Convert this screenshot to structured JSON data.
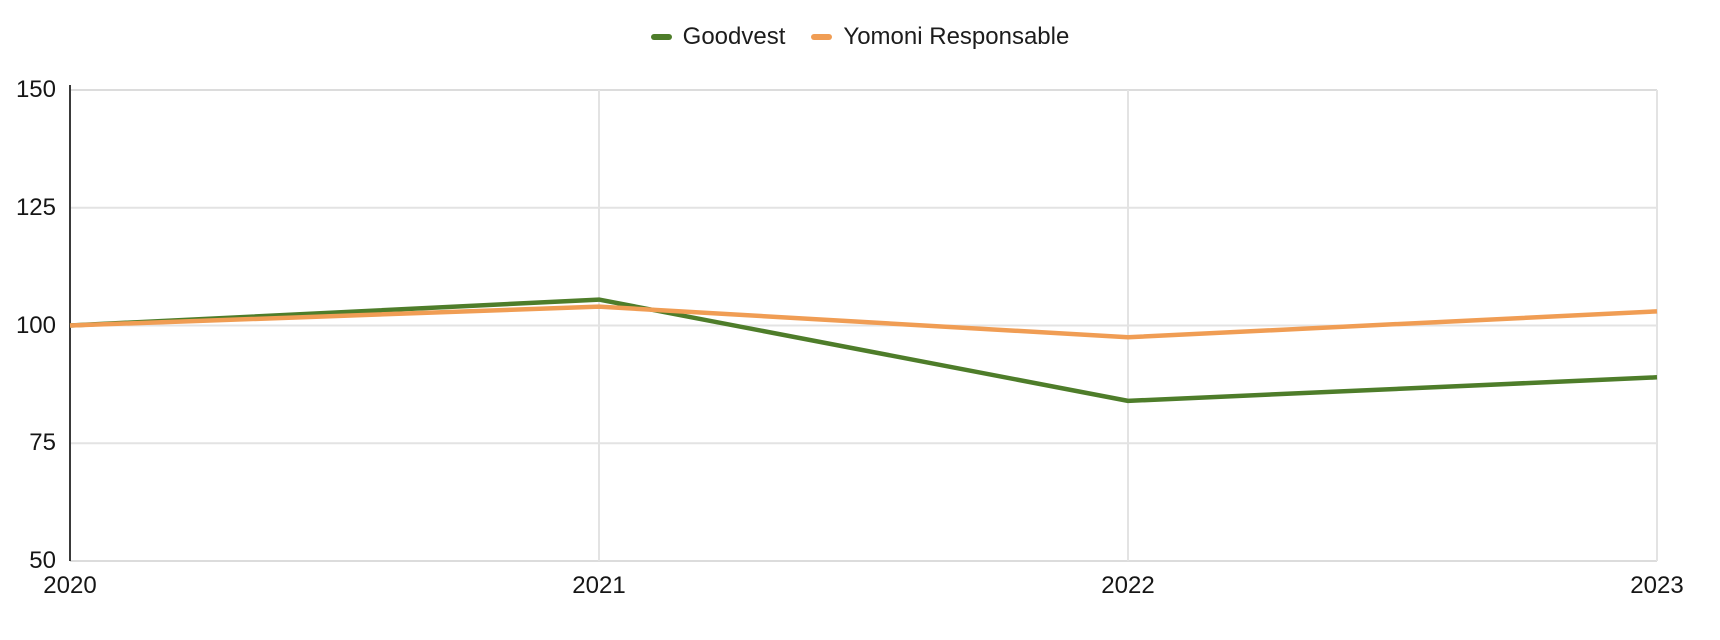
{
  "chart_data": {
    "type": "line",
    "title": "",
    "xlabel": "",
    "ylabel": "",
    "categories": [
      "2020",
      "2021",
      "2022",
      "2023"
    ],
    "series": [
      {
        "name": "Goodvest",
        "color": "#4e7d2a",
        "values": [
          100,
          105.5,
          84,
          89
        ]
      },
      {
        "name": "Yomoni Responsable",
        "color": "#f09d54",
        "values": [
          100,
          104,
          97.5,
          103
        ]
      }
    ],
    "ylim": [
      50,
      150
    ],
    "yticks": [
      150,
      125,
      100,
      75,
      50
    ],
    "grid": true,
    "legend_position": "top",
    "line_width": 4.5
  },
  "colors": {
    "background": "#ffffff",
    "gridline": "#e3e3e3",
    "plot_border": "#dcdcdc",
    "axis_line": "#3a3a3a",
    "label_text": "#161616"
  }
}
